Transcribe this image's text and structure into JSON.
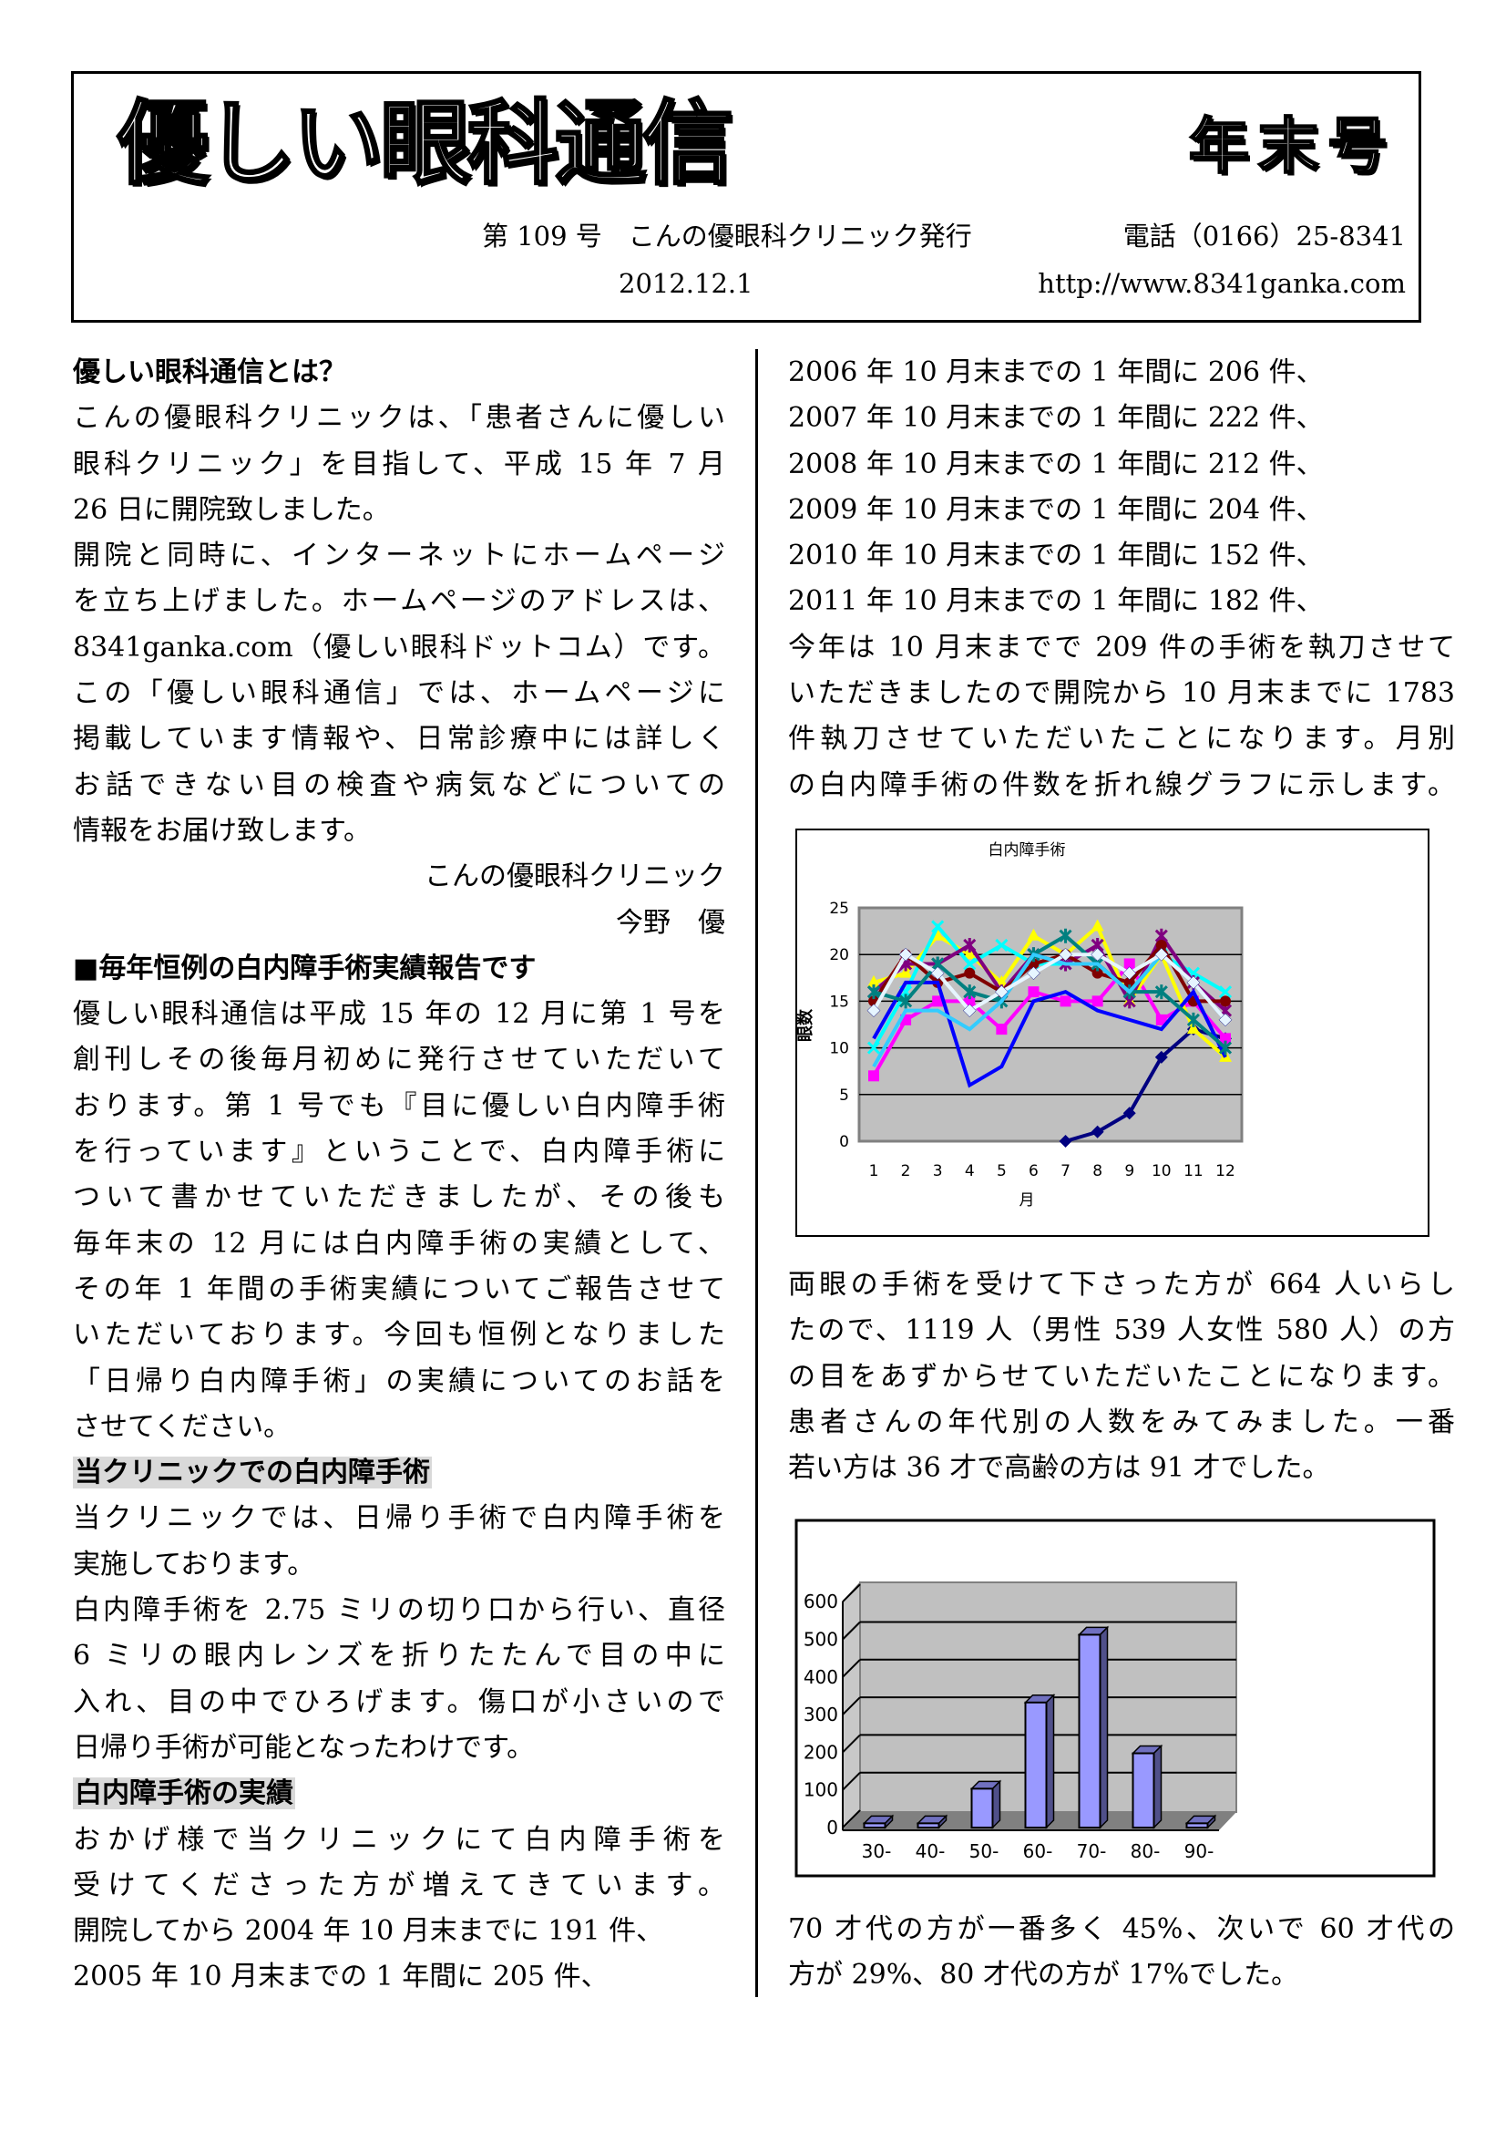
{
  "header": {
    "title": "優しい眼科通信",
    "issue_type": "年末号",
    "issue_line": "第 109 号　こんの優眼科クリニック発行",
    "phone": "電話（0166）25-8341",
    "date": "2012.12.1",
    "url": "http://www.8341ganka.com"
  },
  "left_column": [
    {
      "text": "優しい眼科通信とは？",
      "style": "bold"
    },
    {
      "text": "こんの優眼科クリニックは、「患者さんに優しい"
    },
    {
      "text": "眼科クリニック」を目指して、平成 15 年 7 月"
    },
    {
      "text": "26 日に開院致しました。",
      "style": "short"
    },
    {
      "text": "開院と同時に、インターネットにホームページ"
    },
    {
      "text": "を立ち上げました。ホームページのアドレスは、"
    },
    {
      "text": "8341ganka.com（優しい眼科ドットコム）です。"
    },
    {
      "text": "この「優しい眼科通信」では、ホームページに"
    },
    {
      "text": "掲載しています情報や、日常診療中には詳しく"
    },
    {
      "text": "お話できない目の検査や病気などについての"
    },
    {
      "text": "情報をお届け致します。",
      "style": "short"
    },
    {
      "text": "こんの優眼科クリニック",
      "style": "right"
    },
    {
      "text": "今野　優",
      "style": "right"
    },
    {
      "text": "■毎年恒例の白内障手術実績報告です",
      "style": "bold"
    },
    {
      "text": "優しい眼科通信は平成 15 年の 12 月に第 1 号を"
    },
    {
      "text": "創刊しその後毎月初めに発行させていただいて"
    },
    {
      "text": "おります。第 1 号でも『目に優しい白内障手術"
    },
    {
      "text": "を行っています』ということで、白内障手術に"
    },
    {
      "text": "ついて書かせていただきましたが、その後も"
    },
    {
      "text": "毎年末の 12 月には白内障手術の実績として、"
    },
    {
      "text": "その年 1 年間の手術実績についてご報告させて"
    },
    {
      "text": "いただいております。今回も恒例となりました"
    },
    {
      "text": "「日帰り白内障手術」の実績についてのお話を"
    },
    {
      "text": "させてください。",
      "style": "short"
    },
    {
      "text": "当クリニックでの白内障手術",
      "style": "bold hl"
    },
    {
      "text": "当クリニックでは、日帰り手術で白内障手術を"
    },
    {
      "text": "実施しております。",
      "style": "short"
    },
    {
      "text": "白内障手術を 2.75 ミリの切り口から行い、直径"
    },
    {
      "text": "6 ミリの眼内レンズを折りたたんで目の中に"
    },
    {
      "text": "入れ、目の中でひろげます。傷口が小さいので"
    },
    {
      "text": "日帰り手術が可能となったわけです。",
      "style": "short"
    },
    {
      "text": "白内障手術の実績",
      "style": "bold hl"
    },
    {
      "text": "おかげ様で当クリニックにて白内障手術を"
    },
    {
      "text": "受けてくださった方が増えてきています。"
    },
    {
      "text": "開院してから 2004 年 10 月末までに 191 件、",
      "style": "short"
    },
    {
      "text": "2005 年 10 月末までの 1 年間に 205 件、",
      "style": "short"
    }
  ],
  "right_column_1": [
    {
      "text": "2006 年 10 月末までの 1 年間に 206 件、",
      "style": "short"
    },
    {
      "text": "2007 年 10 月末までの 1 年間に 222 件、",
      "style": "short"
    },
    {
      "text": "2008 年 10 月末までの 1 年間に 212 件、",
      "style": "short"
    },
    {
      "text": "2009 年 10 月末までの 1 年間に 204 件、",
      "style": "short"
    },
    {
      "text": "2010 年 10 月末までの 1 年間に 152 件、",
      "style": "short"
    },
    {
      "text": "2011 年 10 月末までの 1 年間に 182 件、",
      "style": "short"
    },
    {
      "text": "今年は 10 月末までで 209 件の手術を執刀させて"
    },
    {
      "text": "いただきましたので開院から 10 月末までに 1783"
    },
    {
      "text": "件執刀させていただいたことになります。月別"
    },
    {
      "text": "の白内障手術の件数を折れ線グラフに示します。"
    }
  ],
  "right_column_2": [
    {
      "text": "両眼の手術を受けて下さった方が 664 人いらし"
    },
    {
      "text": "たので、1119 人（男性 539 人女性 580 人）の方"
    },
    {
      "text": "の目をあずからせていただいたことになります。"
    },
    {
      "text": "患者さんの年代別の人数をみてみました。一番"
    },
    {
      "text": "若い方は 36 才で高齢の方は 91 才でした。",
      "style": "short"
    }
  ],
  "right_column_3": [
    {
      "text": " 70 才代の方が一番多く 45%、次いで 60 才代の"
    },
    {
      "text": "方が 29%、80 才代の方が 17%でした。",
      "style": "short"
    }
  ],
  "chart_data": [
    {
      "type": "line",
      "title": "白内障手術",
      "xlabel": "月",
      "ylabel": "眼数",
      "categories": [
        "1",
        "2",
        "3",
        "4",
        "5",
        "6",
        "7",
        "8",
        "9",
        "10",
        "11",
        "12"
      ],
      "ylim": [
        0,
        25
      ],
      "yticks": [
        0,
        5,
        10,
        15,
        20,
        25
      ],
      "grid": true,
      "background": "#c0c0c0",
      "series": [
        {
          "color": "#000080",
          "marker": "diamond",
          "values": [
            null,
            null,
            null,
            null,
            null,
            null,
            0,
            1,
            3,
            9,
            12,
            11
          ]
        },
        {
          "color": "#ff00ff",
          "marker": "square",
          "values": [
            7,
            13,
            15,
            15,
            12,
            16,
            15,
            15,
            19,
            13,
            15,
            11
          ]
        },
        {
          "color": "#ffff00",
          "marker": "triangle",
          "values": [
            17,
            18,
            22,
            20,
            17,
            22,
            20,
            23,
            15,
            20,
            12,
            9
          ]
        },
        {
          "color": "#00ffff",
          "marker": "x",
          "values": [
            10,
            16,
            23,
            19,
            21,
            19,
            19,
            19,
            16,
            20,
            18,
            16
          ]
        },
        {
          "color": "#800080",
          "marker": "star",
          "values": [
            16,
            19,
            19,
            21,
            16,
            20,
            19,
            21,
            15,
            22,
            17,
            14
          ]
        },
        {
          "color": "#800000",
          "marker": "circle",
          "values": [
            15,
            20,
            17,
            18,
            16,
            19,
            20,
            18,
            17,
            21,
            15,
            15
          ]
        },
        {
          "color": "#0000ff",
          "marker": "none",
          "values": [
            11,
            17,
            17,
            6,
            8,
            15,
            16,
            14,
            13,
            12,
            16,
            9
          ]
        },
        {
          "color": "#008080",
          "marker": "plus",
          "values": [
            16,
            15,
            19,
            16,
            15,
            20,
            22,
            19,
            16,
            16,
            13,
            10
          ]
        },
        {
          "color": "#33ccff",
          "marker": "none",
          "values": [
            8,
            14,
            14,
            12,
            15,
            20,
            19,
            19,
            16,
            20,
            17,
            13
          ]
        },
        {
          "color": "#e6f5ff",
          "marker": "diamond",
          "values": [
            14,
            20,
            18,
            14,
            16,
            18,
            20,
            20,
            18,
            20,
            17,
            13
          ]
        }
      ]
    },
    {
      "type": "bar",
      "style": "3d",
      "categories": [
        "30-",
        "40-",
        "50-",
        "60-",
        "70-",
        "80-",
        "90-"
      ],
      "values": [
        1,
        1,
        96,
        325,
        505,
        190,
        1
      ],
      "ylim": [
        0,
        600
      ],
      "yticks": [
        0,
        100,
        200,
        300,
        400,
        500,
        600
      ],
      "grid": true,
      "bar_color": "#9999ff",
      "background": "#c0c0c0"
    }
  ]
}
